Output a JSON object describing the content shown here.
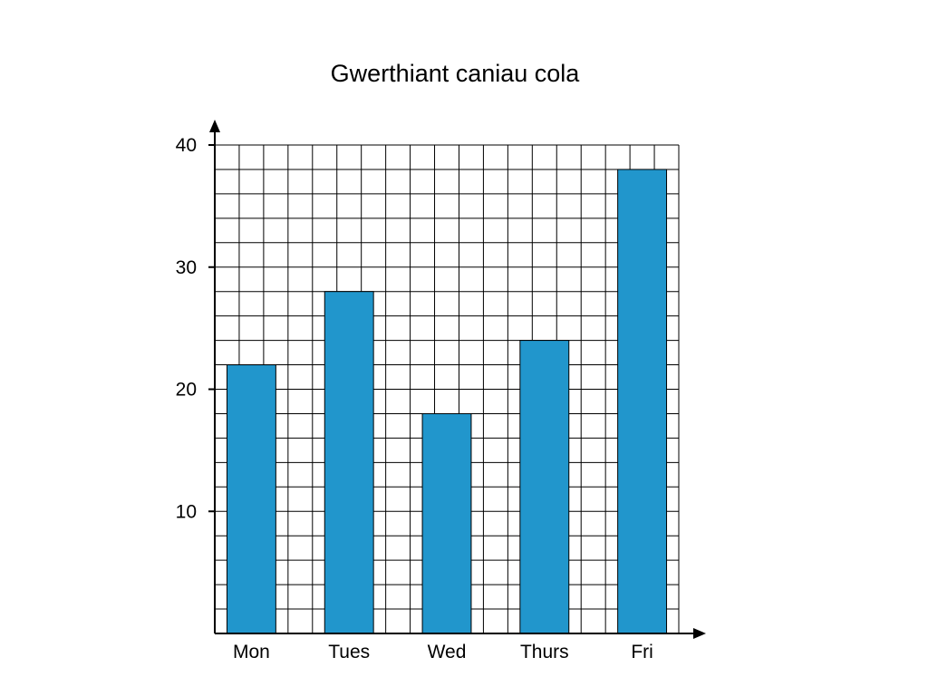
{
  "chart_data": {
    "type": "bar",
    "title": "Gwerthiant caniau cola",
    "xlabel": "",
    "ylabel": "",
    "categories": [
      "Mon",
      "Tues",
      "Wed",
      "Thurs",
      "Fri"
    ],
    "values": [
      22,
      28,
      18,
      24,
      38
    ],
    "ylim": [
      0,
      40
    ],
    "yticks": [
      "10",
      "20",
      "30",
      "40"
    ],
    "ytick_values": [
      10,
      20,
      30,
      40
    ],
    "grid": true,
    "grid_step": 2,
    "legend": "none",
    "bar_color": "#2196cc"
  }
}
